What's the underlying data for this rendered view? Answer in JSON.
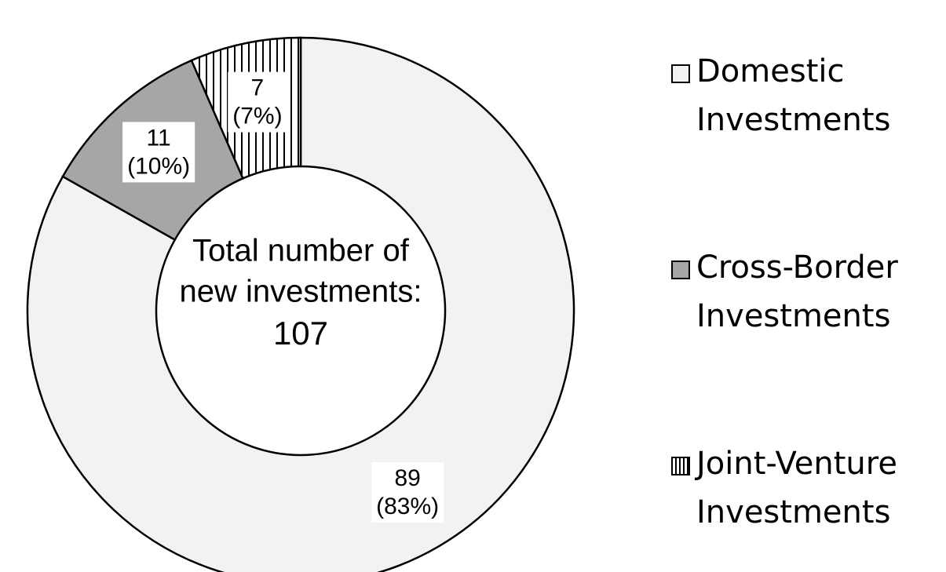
{
  "chart_data": {
    "type": "donut",
    "categories": [
      "Domestic Investments",
      "Cross-Border Investments",
      "Joint-Venture Investments"
    ],
    "values": [
      89,
      11,
      7
    ],
    "percent_labels": [
      "(83%)",
      "(10%)",
      "(7%)"
    ],
    "colors": [
      "#f2f2f2",
      "#a6a6a6",
      "#ffffff"
    ],
    "patterns": [
      "none",
      "none",
      "vertical-lines"
    ],
    "center_label": [
      "Total number of",
      "new investments:"
    ],
    "center_value": 107,
    "legend": "right"
  }
}
